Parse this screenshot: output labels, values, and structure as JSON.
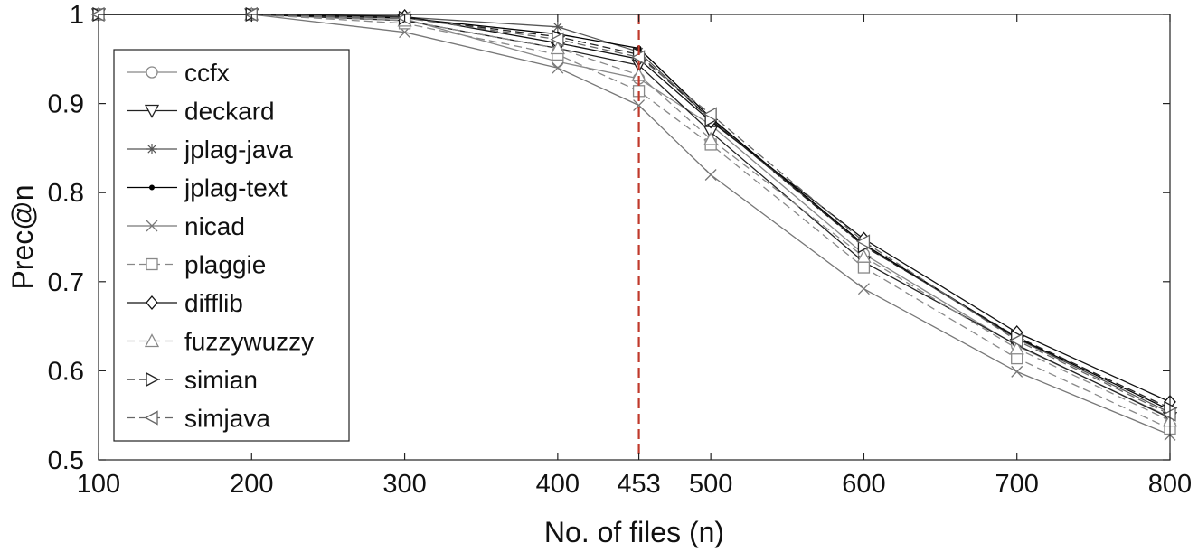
{
  "chart_data": {
    "type": "line",
    "title": "",
    "xlabel": "No. of files (n)",
    "ylabel": "Prec@n",
    "x": [
      100,
      200,
      300,
      400,
      453,
      500,
      600,
      700,
      800
    ],
    "x_ticks": [
      100,
      200,
      300,
      400,
      453,
      500,
      600,
      700,
      800
    ],
    "x_tick_labels": [
      "100",
      "200",
      "300",
      "400",
      "453",
      "500",
      "600",
      "700",
      "800"
    ],
    "xlim": [
      100,
      800
    ],
    "ylim": [
      0.5,
      1.0
    ],
    "y_ticks": [
      0.5,
      0.6,
      0.7,
      0.8,
      0.9,
      1.0
    ],
    "y_tick_labels": [
      "0.5",
      "0.6",
      "0.7",
      "0.8",
      "0.9",
      "1"
    ],
    "grid": false,
    "legend_position": "left",
    "reference_line": {
      "x": 453,
      "color": "#c0392b",
      "style": "dashed"
    },
    "series": [
      {
        "name": "ccfx",
        "marker": "circle",
        "color": "#888888",
        "dash": "solid",
        "values": [
          1.0,
          1.0,
          0.995,
          0.947,
          0.928,
          0.876,
          0.731,
          0.628,
          0.548
        ]
      },
      {
        "name": "deckard",
        "marker": "triangle-down",
        "color": "#222222",
        "dash": "solid",
        "values": [
          1.0,
          1.0,
          0.993,
          0.962,
          0.943,
          0.868,
          0.722,
          0.629,
          0.547
        ]
      },
      {
        "name": "jplag-java",
        "marker": "star",
        "color": "#555555",
        "dash": "solid",
        "values": [
          1.0,
          1.0,
          0.997,
          0.986,
          0.958,
          0.882,
          0.741,
          0.636,
          0.553
        ]
      },
      {
        "name": "jplag-text",
        "marker": "dot",
        "color": "#000000",
        "dash": "solid",
        "values": [
          1.0,
          1.0,
          0.996,
          0.978,
          0.962,
          0.884,
          0.742,
          0.637,
          0.556
        ]
      },
      {
        "name": "nicad",
        "marker": "x",
        "color": "#777777",
        "dash": "solid",
        "values": [
          1.0,
          1.0,
          0.98,
          0.94,
          0.898,
          0.82,
          0.692,
          0.599,
          0.528
        ]
      },
      {
        "name": "plaggie",
        "marker": "square",
        "color": "#888888",
        "dash": "dashed",
        "values": [
          1.0,
          1.0,
          0.99,
          0.955,
          0.914,
          0.854,
          0.716,
          0.614,
          0.535
        ]
      },
      {
        "name": "difflib",
        "marker": "diamond",
        "color": "#111111",
        "dash": "solid",
        "values": [
          1.0,
          1.0,
          0.998,
          0.968,
          0.95,
          0.88,
          0.748,
          0.643,
          0.565
        ]
      },
      {
        "name": "fuzzywuzzy",
        "marker": "triangle-up",
        "color": "#888888",
        "dash": "dashed",
        "values": [
          1.0,
          1.0,
          0.993,
          0.962,
          0.932,
          0.86,
          0.728,
          0.625,
          0.544
        ]
      },
      {
        "name": "simian",
        "marker": "triangle-right",
        "color": "#222222",
        "dash": "dashed",
        "values": [
          1.0,
          1.0,
          0.996,
          0.975,
          0.955,
          0.882,
          0.74,
          0.638,
          0.558
        ]
      },
      {
        "name": "simjava",
        "marker": "triangle-left",
        "color": "#666666",
        "dash": "dashed",
        "values": [
          1.0,
          1.0,
          0.996,
          0.972,
          0.952,
          0.888,
          0.745,
          0.634,
          0.551
        ]
      }
    ]
  }
}
